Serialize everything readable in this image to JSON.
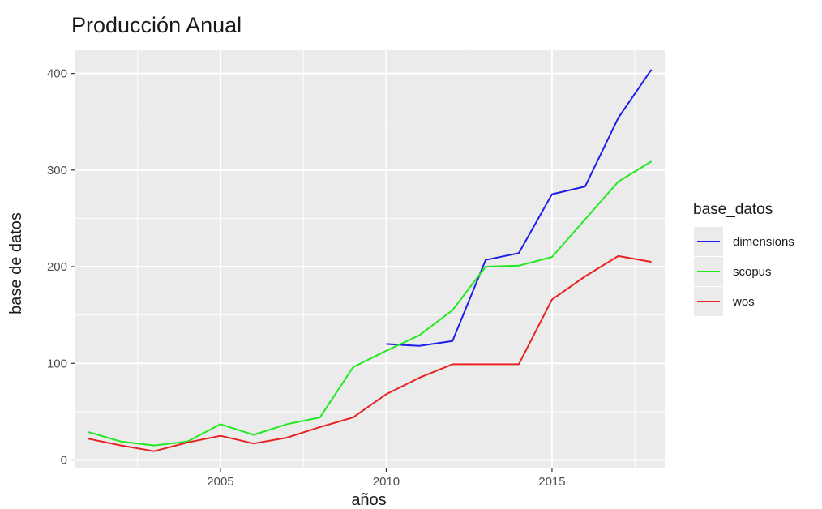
{
  "chart_data": {
    "type": "line",
    "title": "Producción Anual",
    "xlabel": "años",
    "ylabel": "base de datos",
    "xlim": [
      2000.6,
      2018.4
    ],
    "ylim": [
      -8,
      424
    ],
    "x_ticks": [
      2005,
      2010,
      2015
    ],
    "x_minor_ticks": [
      2002.5,
      2007.5,
      2012.5,
      2017.5
    ],
    "y_ticks": [
      0,
      100,
      200,
      300,
      400
    ],
    "y_minor_ticks": [
      50,
      150,
      250,
      350
    ],
    "grid": true,
    "legend": {
      "title": "base_datos",
      "position": "right"
    },
    "series": [
      {
        "name": "dimensions",
        "color": "#1f1fe8",
        "x": [
          2010,
          2011,
          2012,
          2013,
          2014,
          2015,
          2016,
          2017,
          2018
        ],
        "y": [
          120,
          118,
          123,
          207,
          214,
          275,
          283,
          354,
          404
        ]
      },
      {
        "name": "scopus",
        "color": "#22e822",
        "x": [
          2001,
          2002,
          2003,
          2004,
          2005,
          2006,
          2007,
          2008,
          2009,
          2010,
          2011,
          2012,
          2013,
          2014,
          2015,
          2016,
          2017,
          2018
        ],
        "y": [
          29,
          19,
          15,
          19,
          37,
          26,
          37,
          44,
          96,
          113,
          129,
          155,
          200,
          201,
          210,
          249,
          288,
          309
        ]
      },
      {
        "name": "wos",
        "color": "#e82222",
        "x": [
          2001,
          2002,
          2003,
          2004,
          2005,
          2006,
          2007,
          2008,
          2009,
          2010,
          2011,
          2012,
          2013,
          2014,
          2015,
          2016,
          2017,
          2018
        ],
        "y": [
          22,
          15,
          9,
          18,
          25,
          17,
          23,
          34,
          44,
          68,
          85,
          99,
          99,
          99,
          166,
          190,
          211,
          205
        ]
      }
    ]
  }
}
